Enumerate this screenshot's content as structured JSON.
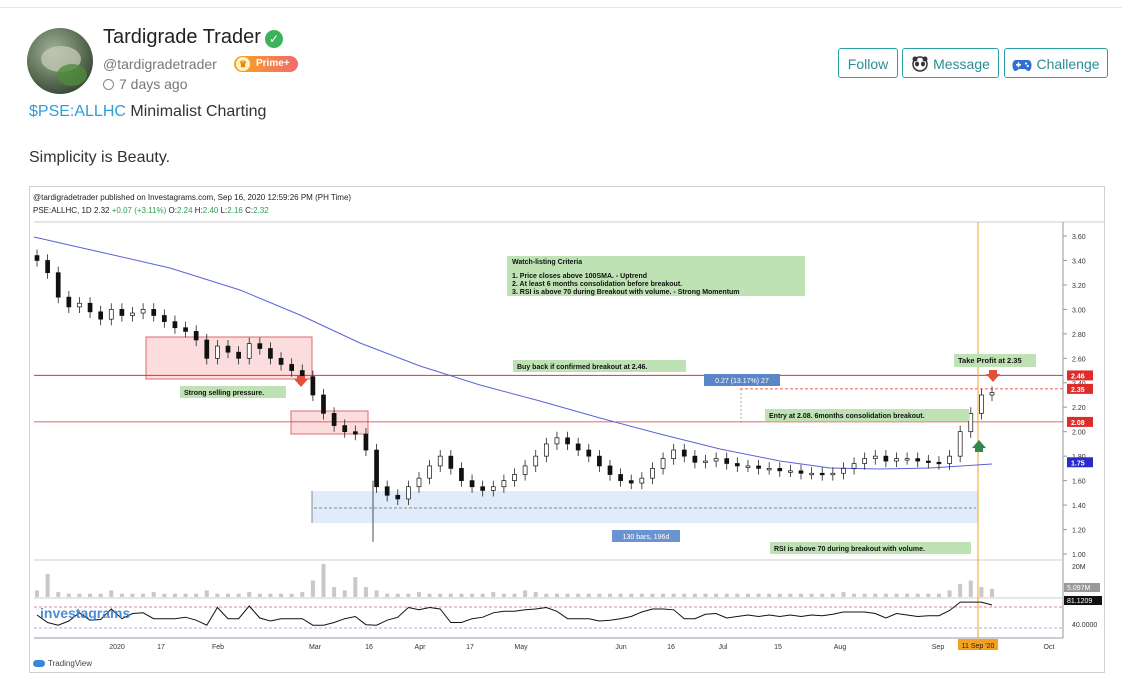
{
  "user": {
    "name": "Tardigrade Trader",
    "handle": "@tardigradetrader",
    "badge": "Prime+",
    "posted": "7 days ago"
  },
  "actions": {
    "follow": "Follow",
    "message": "Message",
    "challenge": "Challenge"
  },
  "post": {
    "ticker": "$PSE:ALLHC",
    "title": "Minimalist Charting",
    "body": "Simplicity is Beauty."
  },
  "chart_header": {
    "published": "@tardigradetrader published on Investagrams.com, Sep 16, 2020 12:59:26 PM (PH Time)",
    "symbol": "PSE:ALLHC, 1D",
    "last": "2.32",
    "change": "+0.07 (+3.11%)",
    "ohlc_o": "2.24",
    "ohlc_h": "2.40",
    "ohlc_l": "2.16",
    "ohlc_c": "2.32",
    "watermark": "investagrams",
    "tradingview": "TradingView"
  },
  "chart_data": {
    "type": "candlestick",
    "y_ticks": [
      "3.60",
      "3.40",
      "3.20",
      "3.00",
      "2.80",
      "2.60",
      "2.40",
      "2.20",
      "2.00",
      "1.80",
      "1.60",
      "1.40",
      "1.20",
      "1.00"
    ],
    "ylim": [
      1.0,
      3.6
    ],
    "x_ticks": [
      "2020",
      "17",
      "Feb",
      "Mar",
      "16",
      "Apr",
      "17",
      "May",
      "Jun",
      "16",
      "Jul",
      "15",
      "Aug",
      "Sep",
      "Oct"
    ],
    "price_tags": [
      {
        "label": "2.46",
        "value": 2.46,
        "color": "#e02b2b"
      },
      {
        "label": "2.35",
        "value": 2.35,
        "color": "#e02b2b"
      },
      {
        "label": "2.08",
        "value": 2.08,
        "color": "#e02b2b"
      },
      {
        "label": "1.75",
        "value": 1.75,
        "color": "#2b2bc8"
      }
    ],
    "horizontal_lines": [
      2.46,
      2.08
    ],
    "closes": [
      3.4,
      3.3,
      3.1,
      3.02,
      3.05,
      2.98,
      2.92,
      3.0,
      2.95,
      2.97,
      3.0,
      2.95,
      2.9,
      2.85,
      2.82,
      2.75,
      2.6,
      2.7,
      2.65,
      2.6,
      2.72,
      2.68,
      2.6,
      2.55,
      2.5,
      2.45,
      2.3,
      2.15,
      2.05,
      2.0,
      1.98,
      1.85,
      1.55,
      1.48,
      1.45,
      1.55,
      1.62,
      1.72,
      1.8,
      1.7,
      1.6,
      1.55,
      1.52,
      1.55,
      1.6,
      1.65,
      1.72,
      1.8,
      1.9,
      1.95,
      1.9,
      1.85,
      1.8,
      1.72,
      1.65,
      1.6,
      1.58,
      1.62,
      1.7,
      1.78,
      1.85,
      1.8,
      1.75,
      1.76,
      1.78,
      1.74,
      1.72,
      1.72,
      1.7,
      1.7,
      1.68,
      1.68,
      1.66,
      1.66,
      1.65,
      1.66,
      1.7,
      1.74,
      1.78,
      1.8,
      1.76,
      1.78,
      1.78,
      1.76,
      1.75,
      1.74,
      1.8,
      2.0,
      2.15,
      2.3,
      2.32
    ],
    "volume": [
      0.2,
      0.7,
      0.15,
      0.1,
      0.1,
      0.1,
      0.1,
      0.2,
      0.1,
      0.1,
      0.1,
      0.15,
      0.1,
      0.1,
      0.1,
      0.1,
      0.2,
      0.1,
      0.1,
      0.1,
      0.15,
      0.1,
      0.1,
      0.1,
      0.1,
      0.15,
      0.5,
      1.0,
      0.3,
      0.2,
      0.6,
      0.3,
      0.2,
      0.1,
      0.1,
      0.1,
      0.15,
      0.1,
      0.1,
      0.1,
      0.1,
      0.1,
      0.1,
      0.15,
      0.1,
      0.1,
      0.2,
      0.15,
      0.1,
      0.1,
      0.1,
      0.1,
      0.1,
      0.1,
      0.1,
      0.1,
      0.1,
      0.1,
      0.1,
      0.1,
      0.1,
      0.1,
      0.1,
      0.1,
      0.1,
      0.1,
      0.1,
      0.1,
      0.1,
      0.1,
      0.1,
      0.1,
      0.1,
      0.1,
      0.1,
      0.1,
      0.15,
      0.1,
      0.1,
      0.1,
      0.1,
      0.1,
      0.1,
      0.1,
      0.1,
      0.1,
      0.2,
      0.4,
      0.5,
      0.3,
      0.25
    ],
    "volume_labels": [
      "20M",
      "5.097M"
    ],
    "rsi_labels": [
      "81.1209",
      "40.0000"
    ],
    "sma_label": "100SMA",
    "date_marker": "11 Sep '20",
    "annotations": {
      "watchlist_title": "Watch-listing Criteria",
      "watchlist_1": "1. Price closes above 100SMA. - Uptrend",
      "watchlist_2": "2. At least 6 months consolidation before breakout.",
      "watchlist_3": "3. RSI is above 70 during Breakout with volume. - Strong Momentum",
      "buyback": "Buy back if confirmed breakout at 2.46.",
      "selling": "Strong selling pressure.",
      "measure": "0.27 (13.17%) 27",
      "entry": "Entry at 2.08. 6months consolidation breakout.",
      "take_profit": "Take Profit at 2.35",
      "bars": "130 bars, 196d",
      "rsi_note": "RSI is above 70 during breakout with volume."
    }
  }
}
